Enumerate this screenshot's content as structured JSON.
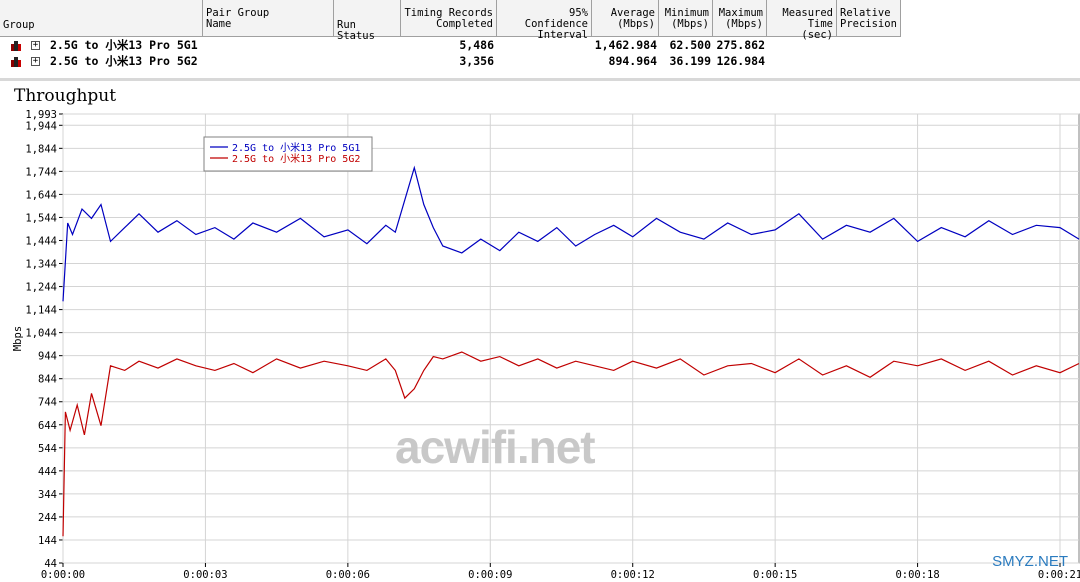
{
  "table": {
    "headers": {
      "group": "Group",
      "pair_group_name": "Pair Group\nName",
      "run_status": "Run Status",
      "timing_records": "Timing Records\nCompleted",
      "confidence": "95% Confidence\nInterval",
      "average": "Average\n(Mbps)",
      "minimum": "Minimum\n(Mbps)",
      "maximum": "Maximum\n(Mbps)",
      "measured_time": "Measured\nTime (sec)",
      "relative_precision": "Relative\nPrecision"
    },
    "rows": [
      {
        "name": "2.5G to 小米13 Pro 5G1",
        "records": "5,486",
        "average": "1,462.984",
        "minimum": "62.500",
        "maximum": "275.862"
      },
      {
        "name": "2.5G to 小米13 Pro 5G2",
        "records": "3,356",
        "average": "894.964",
        "minimum": "36.199",
        "maximum": "126.984"
      }
    ]
  },
  "chart_title": "Throughput",
  "watermark": "acwifi.net",
  "corner_watermark": "SMYZ.NET",
  "chart_data": {
    "type": "line",
    "title": "Throughput",
    "ylabel": "Mbps",
    "xlabel": "",
    "ylim": [
      44,
      1993
    ],
    "xlim": [
      0,
      21.4
    ],
    "yticks": [
      1993,
      1944,
      1844,
      1744,
      1644,
      1544,
      1444,
      1344,
      1244,
      1144,
      1044,
      944,
      844,
      744,
      644,
      544,
      444,
      344,
      244,
      144,
      44
    ],
    "ytick_labels": [
      "1,993",
      "1,944",
      "1,844",
      "1,744",
      "1,644",
      "1,544",
      "1,444",
      "1,344",
      "1,244",
      "1,144",
      "1,044",
      "944",
      "844",
      "744",
      "644",
      "544",
      "444",
      "344",
      "244",
      "144",
      "44"
    ],
    "xticks": [
      0,
      3,
      6,
      9,
      12,
      15,
      18,
      21
    ],
    "xtick_labels": [
      "0:00:00",
      "0:00:03",
      "0:00:06",
      "0:00:09",
      "0:00:12",
      "0:00:15",
      "0:00:18",
      "0:00:21"
    ],
    "grid": true,
    "legend_position": "top-left",
    "series": [
      {
        "name": "2.5G to 小米13 Pro 5G1",
        "color": "#0000c0",
        "x": [
          0,
          0.1,
          0.2,
          0.4,
          0.6,
          0.8,
          1.0,
          1.3,
          1.6,
          2.0,
          2.4,
          2.8,
          3.2,
          3.6,
          4.0,
          4.5,
          5.0,
          5.5,
          6.0,
          6.4,
          6.8,
          7.0,
          7.2,
          7.4,
          7.6,
          7.8,
          8.0,
          8.4,
          8.8,
          9.2,
          9.6,
          10.0,
          10.4,
          10.8,
          11.2,
          11.6,
          12.0,
          12.5,
          13.0,
          13.5,
          14.0,
          14.5,
          15.0,
          15.5,
          16.0,
          16.5,
          17.0,
          17.5,
          18.0,
          18.5,
          19.0,
          19.5,
          20.0,
          20.5,
          21.0,
          21.4
        ],
        "y": [
          1180,
          1520,
          1470,
          1580,
          1540,
          1600,
          1440,
          1500,
          1560,
          1480,
          1530,
          1470,
          1500,
          1450,
          1520,
          1480,
          1540,
          1460,
          1490,
          1430,
          1510,
          1480,
          1620,
          1760,
          1600,
          1500,
          1420,
          1390,
          1450,
          1400,
          1480,
          1440,
          1500,
          1420,
          1470,
          1510,
          1460,
          1540,
          1480,
          1450,
          1520,
          1470,
          1490,
          1560,
          1450,
          1510,
          1480,
          1540,
          1440,
          1500,
          1460,
          1530,
          1470,
          1510,
          1500,
          1450
        ]
      },
      {
        "name": "2.5G to 小米13 Pro 5G2",
        "color": "#c00000",
        "x": [
          0,
          0.05,
          0.15,
          0.3,
          0.45,
          0.6,
          0.8,
          1.0,
          1.3,
          1.6,
          2.0,
          2.4,
          2.8,
          3.2,
          3.6,
          4.0,
          4.5,
          5.0,
          5.5,
          6.0,
          6.4,
          6.8,
          7.0,
          7.2,
          7.4,
          7.6,
          7.8,
          8.0,
          8.4,
          8.8,
          9.2,
          9.6,
          10.0,
          10.4,
          10.8,
          11.2,
          11.6,
          12.0,
          12.5,
          13.0,
          13.5,
          14.0,
          14.5,
          15.0,
          15.5,
          16.0,
          16.5,
          17.0,
          17.5,
          18.0,
          18.5,
          19.0,
          19.5,
          20.0,
          20.5,
          21.0,
          21.4
        ],
        "y": [
          160,
          700,
          620,
          730,
          600,
          780,
          640,
          900,
          880,
          920,
          890,
          930,
          900,
          880,
          910,
          870,
          930,
          890,
          920,
          900,
          880,
          930,
          880,
          760,
          800,
          880,
          940,
          930,
          960,
          920,
          940,
          900,
          930,
          890,
          920,
          900,
          880,
          920,
          890,
          930,
          860,
          900,
          910,
          870,
          930,
          860,
          900,
          850,
          920,
          900,
          930,
          880,
          920,
          860,
          900,
          870,
          910
        ]
      }
    ]
  }
}
